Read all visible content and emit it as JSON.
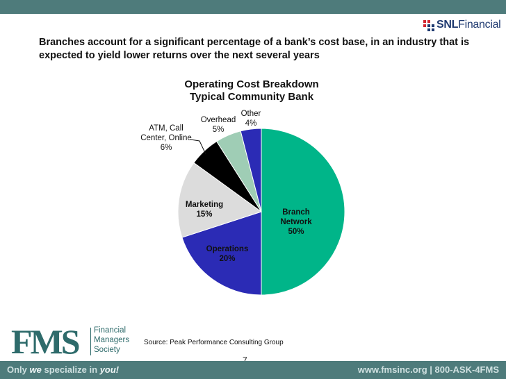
{
  "brand": {
    "snl_text_1": "SNL",
    "snl_text_2": "Financial"
  },
  "headline": "Branches account for a significant percentage of a bank’s cost base, in an industry that is expected to yield lower returns over the next several years",
  "chart_data": {
    "type": "pie",
    "title": [
      "Operating Cost Breakdown",
      "Typical Community Bank"
    ],
    "slices": [
      {
        "name": "Branch Network",
        "label_lines": [
          "Branch",
          "Network",
          "50%"
        ],
        "value": 50,
        "color": "#00b589",
        "label_bold": true
      },
      {
        "name": "Operations",
        "label_lines": [
          "Operations",
          "20%"
        ],
        "value": 20,
        "color": "#2b2bb5",
        "label_bold": true
      },
      {
        "name": "Marketing",
        "label_lines": [
          "Marketing",
          "15%"
        ],
        "value": 15,
        "color": "#dcdcdc",
        "label_bold": true
      },
      {
        "name": "ATM, Call Center, Online",
        "label_lines": [
          "ATM, Call",
          "Center, Online",
          "6%"
        ],
        "value": 6,
        "color": "#000000",
        "label_bold": false
      },
      {
        "name": "Overhead",
        "label_lines": [
          "Overhead",
          "5%"
        ],
        "value": 5,
        "color": "#9fcdb5",
        "label_bold": false
      },
      {
        "name": "Other",
        "label_lines": [
          "Other",
          "4%"
        ],
        "value": 4,
        "color": "#2b2bb5",
        "label_bold": false
      }
    ]
  },
  "source": "Source:  Peak Performance Consulting Group",
  "page_number": "7",
  "footer": {
    "fms_letters": "FMS",
    "fms_line1": "Financial",
    "fms_line2": "Managers",
    "fms_line3": "Society",
    "tagline_1": "Only ",
    "tagline_em1": "we",
    "tagline_2": " specialize in ",
    "tagline_em2": "you!",
    "contact": "www.fmsinc.org | 800-ASK-4FMS"
  }
}
